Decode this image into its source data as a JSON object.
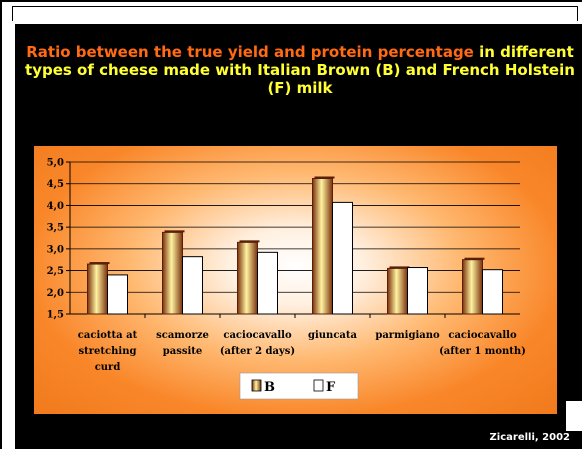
{
  "slide": {
    "title_highlight": "Ratio between the true yield and protein percentage",
    "title_rest": " in different types of cheese made with Italian Brown (B) and French Holstein (F) milk",
    "footer": "Zicarelli, 2002"
  },
  "colors": {
    "background": "#000000",
    "title_highlight": "#ff6a13",
    "title_text": "#ffff33",
    "chart_bg": "#f9872a",
    "series_b": "#8b3a0e",
    "series_f": "#ffffff"
  },
  "chart_data": {
    "type": "bar",
    "categories": [
      [
        "caciotta at",
        "stretching",
        "curd"
      ],
      [
        "scamorze",
        "passite"
      ],
      [
        "caciocavallo",
        "(after 2 days)"
      ],
      [
        "giuncata"
      ],
      [
        "parmigiano"
      ],
      [
        "caciocavallo",
        "(after 1 month)"
      ]
    ],
    "series": [
      {
        "name": "B",
        "values": [
          2.65,
          3.38,
          3.15,
          4.62,
          2.55,
          2.75
        ]
      },
      {
        "name": "F",
        "values": [
          2.4,
          2.82,
          2.92,
          4.07,
          2.57,
          2.52
        ]
      }
    ],
    "ylim": [
      1.5,
      5.0
    ],
    "yticks": [
      "5,0",
      "4,5",
      "4,0",
      "3,5",
      "3,0",
      "2,5",
      "2,0",
      "1,5"
    ],
    "grid": true,
    "legend_position": "bottom-center"
  }
}
